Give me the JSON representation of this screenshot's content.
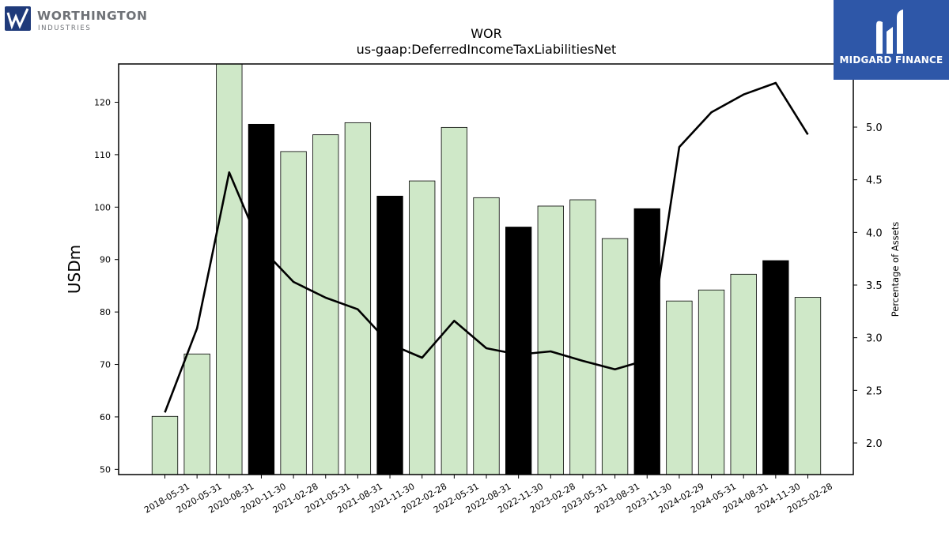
{
  "header": {
    "ticker": "WOR",
    "concept": "us-gaap:DeferredIncomeTaxLiabilitiesNet"
  },
  "logos": {
    "left": {
      "name": "WORTHINGTON",
      "sub": "INDUSTRIES",
      "icon": "worthington-logo-icon",
      "color": "#1f3a7a"
    },
    "right": {
      "name": "MIDGARD FINANCE",
      "icon": "midgard-logo-icon",
      "background": "#2e57a8"
    }
  },
  "chart_data": {
    "type": "bar",
    "title": "WOR",
    "subtitle": "us-gaap:DeferredIncomeTaxLiabilitiesNet",
    "ylabel": "USDm",
    "y2label": "Percentage of Assets",
    "categories": [
      "2018-05-31",
      "2020-05-31",
      "2020-08-31",
      "2020-11-30",
      "2021-02-28",
      "2021-05-31",
      "2021-08-31",
      "2021-11-30",
      "2022-02-28",
      "2022-05-31",
      "2022-08-31",
      "2022-11-30",
      "2023-02-28",
      "2023-05-31",
      "2023-08-31",
      "2023-11-30",
      "2024-02-29",
      "2024-05-31",
      "2024-08-31",
      "2024-11-30",
      "2025-02-28"
    ],
    "series": [
      {
        "type": "bar",
        "values": [
          60.1,
          72.0,
          127.3,
          115.8,
          110.6,
          113.8,
          116.1,
          102.1,
          105.0,
          115.2,
          101.8,
          96.2,
          100.2,
          101.4,
          94.0,
          99.7,
          82.1,
          84.2,
          87.2,
          89.8,
          82.8
        ],
        "highlighted": [
          false,
          false,
          false,
          true,
          false,
          false,
          false,
          true,
          false,
          false,
          false,
          true,
          false,
          false,
          false,
          true,
          false,
          false,
          false,
          true,
          false
        ]
      },
      {
        "type": "line",
        "axis": "right",
        "values": [
          2.29,
          3.09,
          4.57,
          3.85,
          3.53,
          3.38,
          3.27,
          2.94,
          2.81,
          3.16,
          2.9,
          2.84,
          2.87,
          2.78,
          2.7,
          2.79,
          4.81,
          5.14,
          5.31,
          5.42,
          4.93
        ]
      }
    ],
    "ylim": [
      49.0,
      127.3
    ],
    "yticks": [
      50,
      60,
      70,
      80,
      90,
      100,
      110,
      120
    ],
    "y2lim": [
      1.7,
      5.6
    ],
    "y2ticks": [
      2.0,
      2.5,
      3.0,
      3.5,
      4.0,
      4.5,
      5.0
    ],
    "grid": false,
    "colors": {
      "bar": "#cfe8c8",
      "bar_highlight": "#000000",
      "line": "#000000"
    }
  }
}
